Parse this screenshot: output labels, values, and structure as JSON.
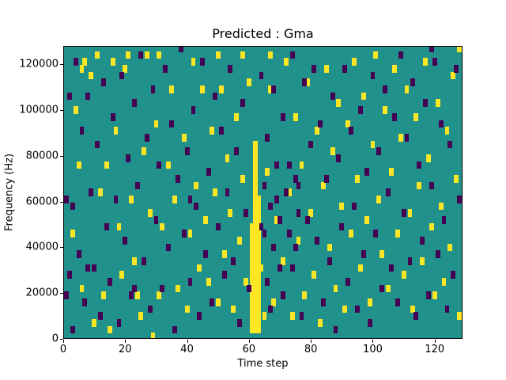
{
  "figure": {
    "title": "Predicted : Gma",
    "xlabel": "Time step",
    "ylabel": "Frequency (Hz)"
  },
  "chart_data": {
    "type": "heatmap",
    "title": "Predicted : Gma",
    "xlabel": "Time step",
    "ylabel": "Frequency (Hz)",
    "xlim": [
      0,
      129
    ],
    "ylim": [
      0,
      128000
    ],
    "x_ticks": [
      0,
      20,
      40,
      60,
      80,
      100,
      120
    ],
    "y_ticks": [
      0,
      20000,
      40000,
      60000,
      80000,
      100000,
      120000
    ],
    "grid": false,
    "legend": null,
    "colormap": "viridis",
    "colors": {
      "background": "#21918c",
      "high": "#fde725",
      "low": "#440154"
    },
    "freq_bin_hz": 3000,
    "time_bin": 1,
    "band_columns": [
      {
        "x": 60,
        "y0": 3000,
        "y1": 48000
      },
      {
        "x": 61,
        "y0": 3000,
        "y1": 84000
      },
      {
        "x": 62,
        "y0": 3000,
        "y1": 60000
      }
    ],
    "cells_high": [
      [
        2,
        45000
      ],
      [
        3,
        99000
      ],
      [
        4,
        75000
      ],
      [
        5,
        21000
      ],
      [
        5,
        117000
      ],
      [
        6,
        120000
      ],
      [
        8,
        114000
      ],
      [
        9,
        6000
      ],
      [
        10,
        123000
      ],
      [
        11,
        63000
      ],
      [
        12,
        18000
      ],
      [
        13,
        75000
      ],
      [
        14,
        3000
      ],
      [
        15,
        120000
      ],
      [
        16,
        90000
      ],
      [
        17,
        48000
      ],
      [
        18,
        27000
      ],
      [
        19,
        117000
      ],
      [
        20,
        123000
      ],
      [
        21,
        60000
      ],
      [
        22,
        33000
      ],
      [
        23,
        18000
      ],
      [
        24,
        9000
      ],
      [
        25,
        81000
      ],
      [
        26,
        123000
      ],
      [
        27,
        54000
      ],
      [
        28,
        0
      ],
      [
        29,
        93000
      ],
      [
        30,
        18000
      ],
      [
        30,
        123000
      ],
      [
        31,
        48000
      ],
      [
        33,
        75000
      ],
      [
        34,
        108000
      ],
      [
        35,
        60000
      ],
      [
        36,
        21000
      ],
      [
        38,
        87000
      ],
      [
        39,
        12000
      ],
      [
        40,
        45000
      ],
      [
        41,
        120000
      ],
      [
        42,
        66000
      ],
      [
        43,
        30000
      ],
      [
        44,
        108000
      ],
      [
        45,
        51000
      ],
      [
        46,
        24000
      ],
      [
        47,
        90000
      ],
      [
        48,
        63000
      ],
      [
        49,
        15000
      ],
      [
        49,
        123000
      ],
      [
        50,
        108000
      ],
      [
        51,
        36000
      ],
      [
        52,
        78000
      ],
      [
        53,
        54000
      ],
      [
        54,
        12000
      ],
      [
        55,
        96000
      ],
      [
        56,
        42000
      ],
      [
        57,
        69000
      ],
      [
        57,
        123000
      ],
      [
        58,
        24000
      ],
      [
        59,
        111000
      ],
      [
        63,
        30000
      ],
      [
        64,
        9000
      ],
      [
        65,
        72000
      ],
      [
        66,
        108000
      ],
      [
        66,
        123000
      ],
      [
        67,
        15000
      ],
      [
        68,
        51000
      ],
      [
        70,
        33000
      ],
      [
        71,
        120000
      ],
      [
        72,
        63000
      ],
      [
        73,
        9000
      ],
      [
        74,
        96000
      ],
      [
        75,
        42000
      ],
      [
        76,
        75000
      ],
      [
        77,
        18000
      ],
      [
        78,
        111000
      ],
      [
        79,
        54000
      ],
      [
        80,
        27000
      ],
      [
        81,
        90000
      ],
      [
        82,
        6000
      ],
      [
        83,
        66000
      ],
      [
        84,
        117000
      ],
      [
        85,
        39000
      ],
      [
        86,
        81000
      ],
      [
        87,
        21000
      ],
      [
        88,
        102000
      ],
      [
        89,
        57000
      ],
      [
        90,
        12000
      ],
      [
        91,
        93000
      ],
      [
        92,
        45000
      ],
      [
        93,
        120000
      ],
      [
        94,
        69000
      ],
      [
        95,
        30000
      ],
      [
        96,
        105000
      ],
      [
        97,
        51000
      ],
      [
        98,
        15000
      ],
      [
        99,
        84000
      ],
      [
        100,
        123000
      ],
      [
        101,
        60000
      ],
      [
        102,
        36000
      ],
      [
        103,
        99000
      ],
      [
        104,
        21000
      ],
      [
        105,
        72000
      ],
      [
        106,
        117000
      ],
      [
        107,
        45000
      ],
      [
        108,
        87000
      ],
      [
        109,
        27000
      ],
      [
        110,
        108000
      ],
      [
        111,
        54000
      ],
      [
        112,
        12000
      ],
      [
        113,
        96000
      ],
      [
        114,
        66000
      ],
      [
        115,
        33000
      ],
      [
        116,
        120000
      ],
      [
        117,
        78000
      ],
      [
        118,
        48000
      ],
      [
        119,
        18000
      ],
      [
        120,
        102000
      ],
      [
        121,
        57000
      ],
      [
        122,
        24000
      ],
      [
        123,
        90000
      ],
      [
        124,
        39000
      ],
      [
        125,
        114000
      ],
      [
        126,
        69000
      ],
      [
        127,
        9000
      ],
      [
        127,
        126000
      ]
    ],
    "cells_low": [
      [
        0,
        18000
      ],
      [
        0,
        60000
      ],
      [
        1,
        27000
      ],
      [
        1,
        105000
      ],
      [
        2,
        3000
      ],
      [
        2,
        57000
      ],
      [
        3,
        120000
      ],
      [
        4,
        36000
      ],
      [
        5,
        90000
      ],
      [
        6,
        15000
      ],
      [
        7,
        30000
      ],
      [
        7,
        105000
      ],
      [
        8,
        63000
      ],
      [
        9,
        30000
      ],
      [
        10,
        84000
      ],
      [
        11,
        9000
      ],
      [
        12,
        111000
      ],
      [
        13,
        48000
      ],
      [
        14,
        24000
      ],
      [
        15,
        96000
      ],
      [
        16,
        60000
      ],
      [
        17,
        6000
      ],
      [
        18,
        114000
      ],
      [
        19,
        42000
      ],
      [
        20,
        78000
      ],
      [
        21,
        18000
      ],
      [
        22,
        21000
      ],
      [
        22,
        102000
      ],
      [
        23,
        66000
      ],
      [
        24,
        123000
      ],
      [
        25,
        33000
      ],
      [
        26,
        87000
      ],
      [
        27,
        12000
      ],
      [
        28,
        108000
      ],
      [
        29,
        51000
      ],
      [
        30,
        75000
      ],
      [
        31,
        21000
      ],
      [
        32,
        117000
      ],
      [
        33,
        39000
      ],
      [
        34,
        93000
      ],
      [
        35,
        3000
      ],
      [
        36,
        69000
      ],
      [
        37,
        126000
      ],
      [
        38,
        45000
      ],
      [
        39,
        81000
      ],
      [
        40,
        24000
      ],
      [
        40,
        60000
      ],
      [
        41,
        99000
      ],
      [
        42,
        57000
      ],
      [
        43,
        9000
      ],
      [
        44,
        120000
      ],
      [
        45,
        36000
      ],
      [
        46,
        72000
      ],
      [
        47,
        15000
      ],
      [
        48,
        105000
      ],
      [
        49,
        48000
      ],
      [
        50,
        90000
      ],
      [
        51,
        27000
      ],
      [
        52,
        63000
      ],
      [
        53,
        117000
      ],
      [
        54,
        33000
      ],
      [
        55,
        81000
      ],
      [
        56,
        6000
      ],
      [
        57,
        102000
      ],
      [
        58,
        54000
      ],
      [
        59,
        21000
      ],
      [
        63,
        48000
      ],
      [
        63,
        114000
      ],
      [
        64,
        45000
      ],
      [
        64,
        66000
      ],
      [
        65,
        24000
      ],
      [
        65,
        87000
      ],
      [
        66,
        12000
      ],
      [
        66,
        57000
      ],
      [
        67,
        39000
      ],
      [
        67,
        108000
      ],
      [
        68,
        60000
      ],
      [
        68,
        75000
      ],
      [
        69,
        30000
      ],
      [
        69,
        51000
      ],
      [
        70,
        18000
      ],
      [
        70,
        96000
      ],
      [
        71,
        63000
      ],
      [
        72,
        45000
      ],
      [
        72,
        75000
      ],
      [
        73,
        30000
      ],
      [
        73,
        123000
      ],
      [
        74,
        39000
      ],
      [
        74,
        69000
      ],
      [
        75,
        54000
      ],
      [
        75,
        66000
      ],
      [
        76,
        9000
      ],
      [
        77,
        111000
      ],
      [
        78,
        51000
      ],
      [
        79,
        84000
      ],
      [
        80,
        117000
      ],
      [
        81,
        42000
      ],
      [
        82,
        93000
      ],
      [
        83,
        15000
      ],
      [
        84,
        69000
      ],
      [
        85,
        33000
      ],
      [
        86,
        105000
      ],
      [
        87,
        3000
      ],
      [
        88,
        78000
      ],
      [
        89,
        48000
      ],
      [
        90,
        117000
      ],
      [
        91,
        24000
      ],
      [
        92,
        90000
      ],
      [
        93,
        57000
      ],
      [
        94,
        12000
      ],
      [
        95,
        99000
      ],
      [
        96,
        36000
      ],
      [
        97,
        72000
      ],
      [
        98,
        6000
      ],
      [
        99,
        114000
      ],
      [
        100,
        45000
      ],
      [
        101,
        81000
      ],
      [
        102,
        21000
      ],
      [
        103,
        108000
      ],
      [
        104,
        63000
      ],
      [
        105,
        30000
      ],
      [
        106,
        96000
      ],
      [
        107,
        15000
      ],
      [
        108,
        123000
      ],
      [
        109,
        54000
      ],
      [
        110,
        87000
      ],
      [
        111,
        33000
      ],
      [
        112,
        111000
      ],
      [
        113,
        9000
      ],
      [
        114,
        75000
      ],
      [
        115,
        42000
      ],
      [
        116,
        102000
      ],
      [
        117,
        18000
      ],
      [
        118,
        66000
      ],
      [
        118,
        126000
      ],
      [
        119,
        120000
      ],
      [
        120,
        36000
      ],
      [
        121,
        93000
      ],
      [
        122,
        51000
      ],
      [
        123,
        12000
      ],
      [
        124,
        84000
      ],
      [
        125,
        27000
      ],
      [
        126,
        117000
      ],
      [
        127,
        60000
      ]
    ]
  }
}
